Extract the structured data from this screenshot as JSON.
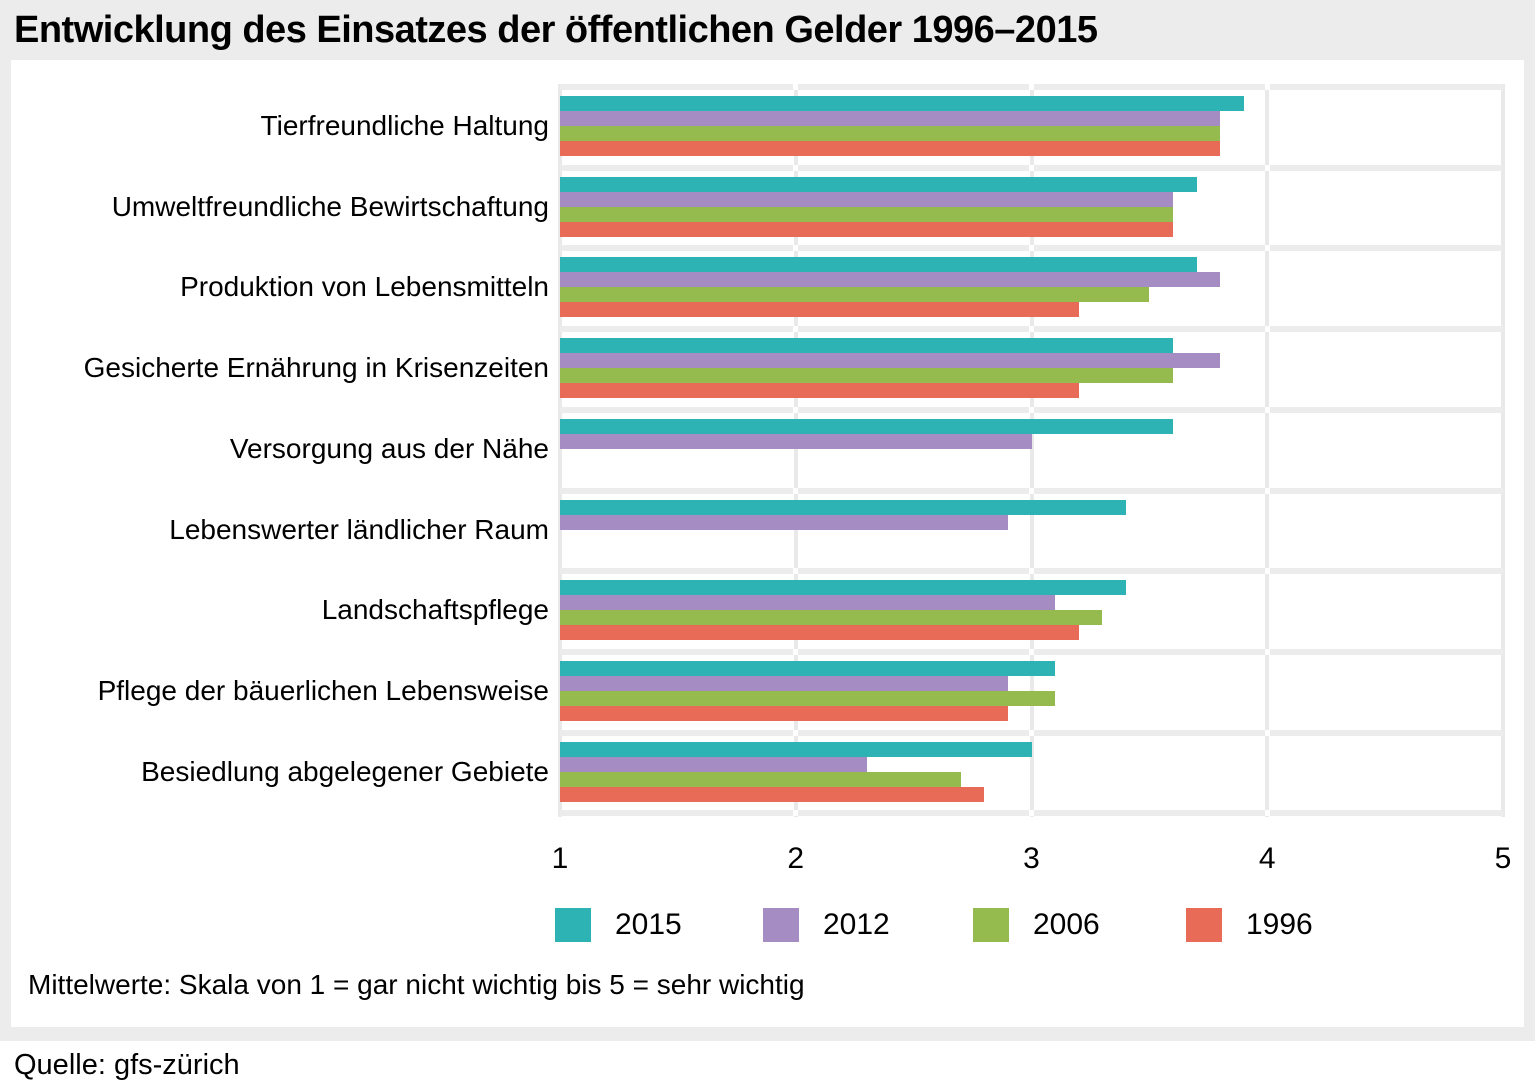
{
  "title": "Entwicklung des Einsatzes der öffentlichen Gelder 1996–2015",
  "chart_data": {
    "type": "bar",
    "orientation": "horizontal",
    "title": "Entwicklung des Einsatzes der öffentlichen Gelder 1996–2015",
    "categories": [
      "Tierfreundliche Haltung",
      "Umweltfreundliche Bewirtschaftung",
      "Produktion von Lebensmitteln",
      "Gesicherte Ernährung in Krisenzeiten",
      "Versorgung aus der Nähe",
      "Lebenswerter ländlicher Raum",
      "Landschaftspflege",
      "Pflege der bäuerlichen Lebensweise",
      "Besiedlung abgelegener Gebiete"
    ],
    "series": [
      {
        "name": "2015",
        "color": "#2eb3b5",
        "values": [
          3.9,
          3.7,
          3.7,
          3.6,
          3.6,
          3.4,
          3.4,
          3.1,
          3.0
        ]
      },
      {
        "name": "2012",
        "color": "#a58cc2",
        "values": [
          3.8,
          3.6,
          3.8,
          3.8,
          3.0,
          2.9,
          3.1,
          2.9,
          2.3
        ]
      },
      {
        "name": "2006",
        "color": "#95ba4e",
        "values": [
          3.8,
          3.6,
          3.5,
          3.6,
          null,
          null,
          3.3,
          3.1,
          2.7
        ]
      },
      {
        "name": "1996",
        "color": "#e86b57",
        "values": [
          3.8,
          3.6,
          3.2,
          3.2,
          null,
          null,
          3.2,
          2.9,
          2.8
        ]
      }
    ],
    "xlim": [
      1,
      5
    ],
    "xticks": [
      "1",
      "2",
      "3",
      "4",
      "5"
    ],
    "grid": true,
    "legend_position": "bottom"
  },
  "footnote": "Mittelwerte: Skala von 1 = gar nicht wichtig bis 5 = sehr wichtig",
  "source": "Quelle: gfs-zürich",
  "colors": {
    "page_background": "#ececec",
    "panel_background": "#ffffff",
    "grid_line": "#e9e9e9",
    "text": "#000000"
  }
}
